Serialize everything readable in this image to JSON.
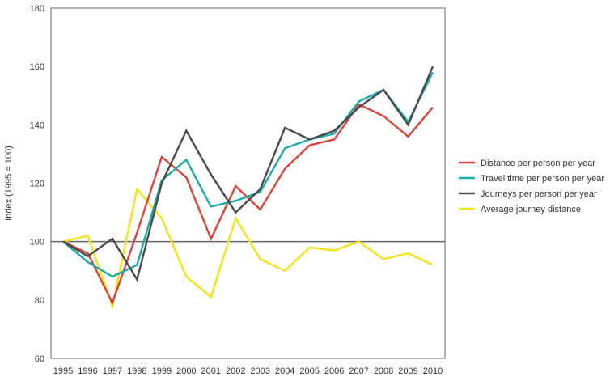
{
  "chart_data": {
    "type": "line",
    "ylabel": "Index (1995 = 100)",
    "xlabel": "",
    "ylim": [
      60,
      180
    ],
    "yticks": [
      60,
      80,
      100,
      120,
      140,
      160,
      180
    ],
    "reference_line": 100,
    "grid": false,
    "legend_position": "right",
    "x": [
      "1995",
      "1996",
      "1997",
      "1998",
      "1999",
      "2000",
      "2001",
      "2002",
      "2003",
      "2004",
      "2005",
      "2006",
      "2007",
      "2008",
      "2009",
      "2010"
    ],
    "series": [
      {
        "name": "Distance per person per year",
        "color": "#d9443a",
        "values": [
          100,
          96,
          79,
          103,
          129,
          122,
          101,
          119,
          111,
          125,
          133,
          135,
          147,
          143,
          136,
          146
        ]
      },
      {
        "name": "Travel time per person per year",
        "color": "#1eaaa8",
        "values": [
          100,
          93,
          88,
          92,
          121,
          128,
          112,
          114,
          117,
          132,
          135,
          137,
          148,
          152,
          141,
          158
        ]
      },
      {
        "name": "Journeys per person per year",
        "color": "#4a4a4a",
        "values": [
          100,
          95,
          101,
          87,
          120,
          138,
          123,
          110,
          118,
          139,
          135,
          138,
          146,
          152,
          140,
          160
        ]
      },
      {
        "name": "Average journey distance",
        "color": "#f4e21a",
        "values": [
          100,
          102,
          78,
          118,
          108,
          88,
          81,
          108,
          94,
          90,
          98,
          97,
          100,
          94,
          96,
          92
        ]
      }
    ]
  }
}
